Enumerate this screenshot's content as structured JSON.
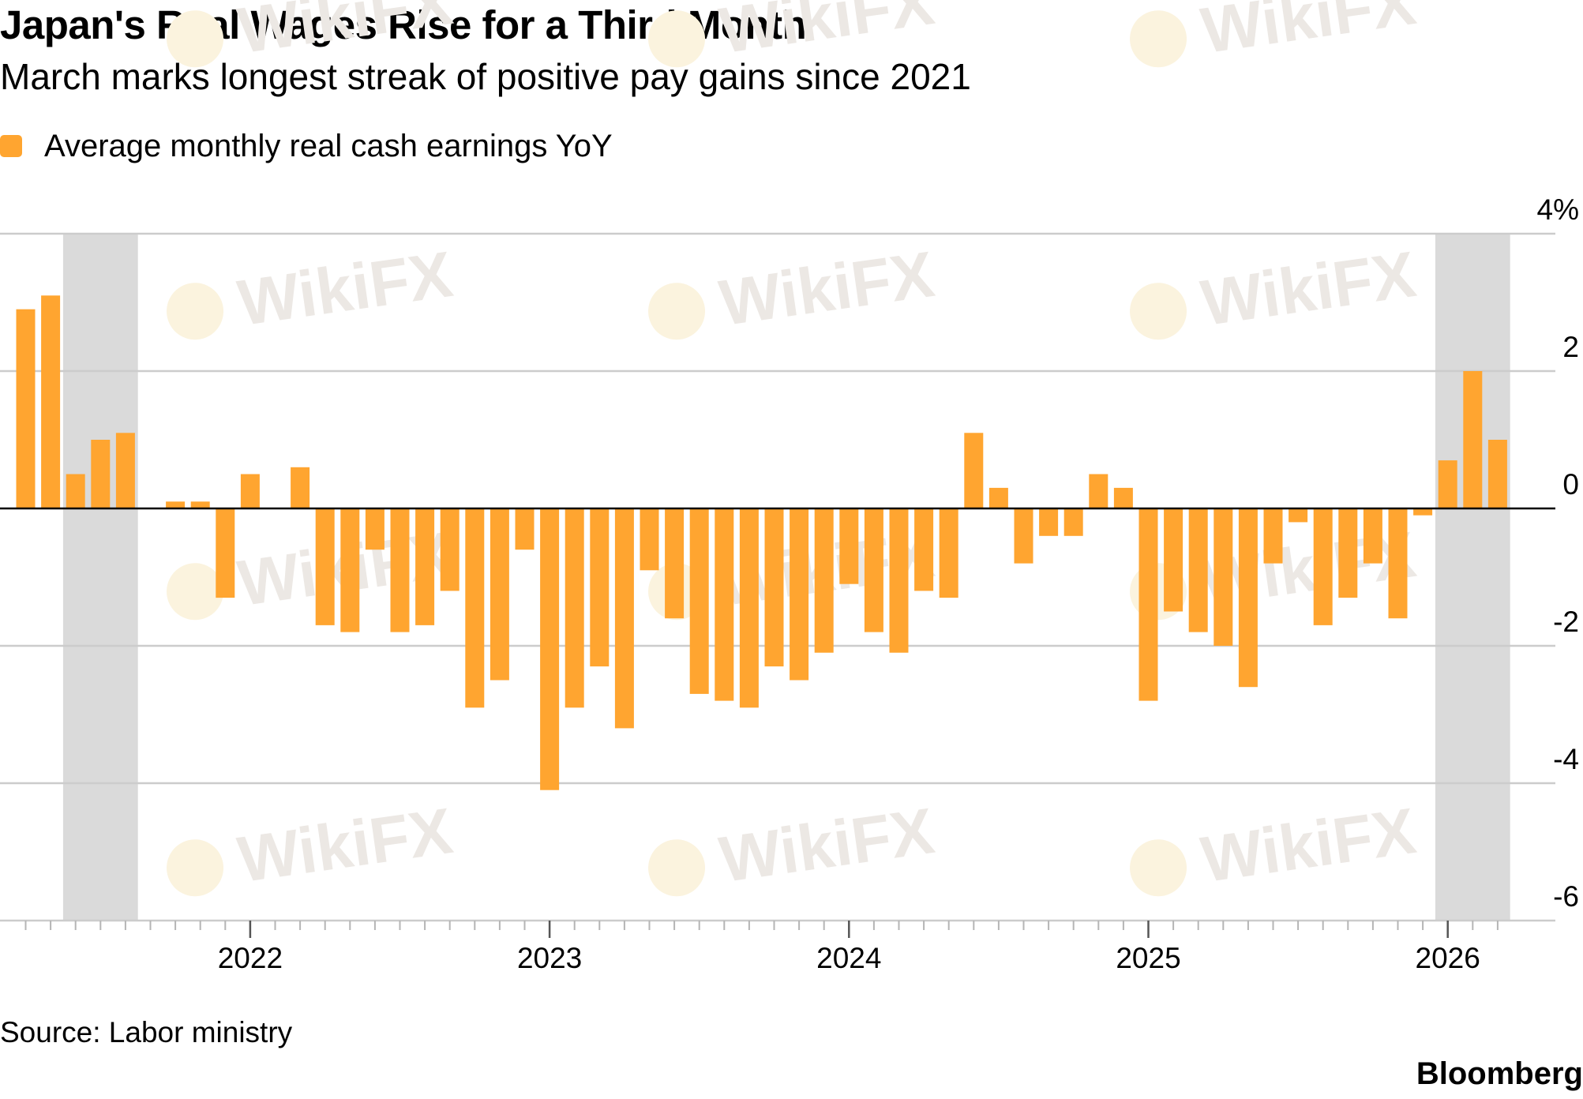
{
  "header": {
    "title": "Japan's Real Wages Rise for a Third Month",
    "subtitle": "March marks longest streak of positive pay gains since 2021"
  },
  "footer": {
    "source": "Source: Labor ministry",
    "brand": "Bloomberg"
  },
  "watermark": {
    "text": "WikiFX"
  },
  "colors": {
    "bar": "#ffa530",
    "shade": "#dadada",
    "grid": "#cccccc",
    "zero": "#000000"
  },
  "chart_data": {
    "type": "bar",
    "legend": [
      "Average monthly real cash earnings YoY"
    ],
    "legend_position": "top-left",
    "grid": true,
    "ylim": [
      -6,
      4
    ],
    "y_ticks": [
      {
        "value": 4,
        "label": "4%"
      },
      {
        "value": 2,
        "label": "2"
      },
      {
        "value": 0,
        "label": "0"
      },
      {
        "value": -2,
        "label": "-2"
      },
      {
        "value": -4,
        "label": "-4"
      },
      {
        "value": -6,
        "label": "-6"
      }
    ],
    "x_ticks": [
      "2022",
      "2023",
      "2024",
      "2025",
      "2026"
    ],
    "x_tick_dates": [
      "2022-01",
      "2023-01",
      "2024-01",
      "2025-01",
      "2026-01"
    ],
    "shaded_ranges": [
      {
        "start": "2021-06",
        "end": "2021-08"
      },
      {
        "start": "2026-01",
        "end": "2026-03"
      }
    ],
    "series": [
      {
        "name": "Average monthly real cash earnings YoY",
        "x": [
          "2021-04",
          "2021-05",
          "2021-06",
          "2021-07",
          "2021-08",
          "2021-09",
          "2021-10",
          "2021-11",
          "2021-12",
          "2022-01",
          "2022-02",
          "2022-03",
          "2022-04",
          "2022-05",
          "2022-06",
          "2022-07",
          "2022-08",
          "2022-09",
          "2022-10",
          "2022-11",
          "2022-12",
          "2023-01",
          "2023-02",
          "2023-03",
          "2023-04",
          "2023-05",
          "2023-06",
          "2023-07",
          "2023-08",
          "2023-09",
          "2023-10",
          "2023-11",
          "2023-12",
          "2024-01",
          "2024-02",
          "2024-03",
          "2024-04",
          "2024-05",
          "2024-06",
          "2024-07",
          "2024-08",
          "2024-09",
          "2024-10",
          "2024-11",
          "2024-12",
          "2025-01",
          "2025-02",
          "2025-03",
          "2025-04",
          "2025-05",
          "2025-06",
          "2025-07",
          "2025-08",
          "2025-09",
          "2025-10",
          "2025-11",
          "2025-12",
          "2026-01",
          "2026-02",
          "2026-03"
        ],
        "values": [
          2.9,
          3.1,
          0.5,
          1.0,
          1.1,
          0,
          0.1,
          0.1,
          -1.3,
          0.5,
          0,
          0.6,
          -1.7,
          -1.8,
          -0.6,
          -1.8,
          -1.7,
          -1.2,
          -2.9,
          -2.5,
          -0.6,
          -4.1,
          -2.9,
          -2.3,
          -3.2,
          -0.9,
          -1.6,
          -2.7,
          -2.8,
          -2.9,
          -2.3,
          -2.5,
          -2.1,
          -1.1,
          -1.8,
          -2.1,
          -1.2,
          -1.3,
          1.1,
          0.3,
          -0.8,
          -0.4,
          -0.4,
          0.5,
          0.3,
          -2.8,
          -1.5,
          -1.8,
          -2.0,
          -2.6,
          -0.8,
          -0.2,
          -1.7,
          -1.3,
          -0.8,
          -1.6,
          -0.1,
          0.7,
          2.0,
          1.0
        ]
      }
    ]
  }
}
